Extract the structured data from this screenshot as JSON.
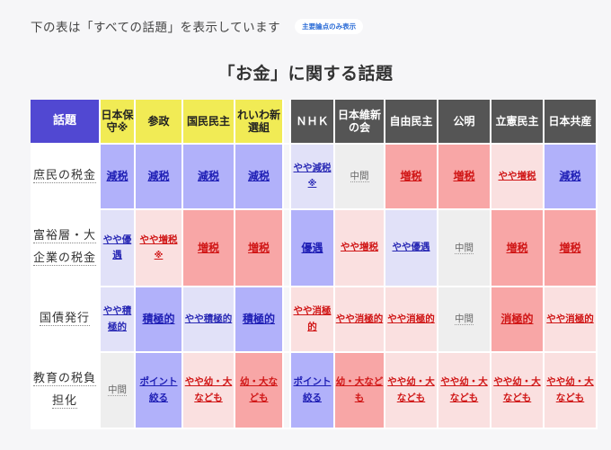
{
  "header": {
    "description": "下の表は「すべての話題」を表示しています",
    "toggle_label": "主要論点のみ表示"
  },
  "page_title": "「お金」に関する話題",
  "table": {
    "topic_header": "話題",
    "parties": [
      {
        "name": "日本保守※",
        "group": "yellow"
      },
      {
        "name": "参政",
        "group": "yellow"
      },
      {
        "name": "国民民主",
        "group": "yellow"
      },
      {
        "name": "れいわ新選組",
        "group": "yellow"
      },
      {
        "name": "ＮＨＫ",
        "group": "grey"
      },
      {
        "name": "日本維新の会",
        "group": "grey"
      },
      {
        "name": "自由民主",
        "group": "grey"
      },
      {
        "name": "公明",
        "group": "grey"
      },
      {
        "name": "立憲民主",
        "group": "grey"
      },
      {
        "name": "日本共産",
        "group": "grey"
      }
    ],
    "rows": [
      {
        "topic": "庶民の税金",
        "cells": [
          {
            "text": "減税",
            "tone": "blue-strong"
          },
          {
            "text": "減税",
            "tone": "blue-strong"
          },
          {
            "text": "減税",
            "tone": "blue-strong"
          },
          {
            "text": "減税",
            "tone": "blue-strong"
          },
          {
            "text": "やや減税",
            "note": "※",
            "tone": "blue-light"
          },
          {
            "text": "中間",
            "tone": "neutral"
          },
          {
            "text": "増税",
            "tone": "red-strong"
          },
          {
            "text": "増税",
            "tone": "red-strong"
          },
          {
            "text": "やや増税",
            "tone": "red-light"
          },
          {
            "text": "減税",
            "tone": "blue-strong"
          }
        ]
      },
      {
        "topic": "富裕層・大企業の税金",
        "cells": [
          {
            "text": "やや優遇",
            "tone": "blue-light"
          },
          {
            "text": "やや増税",
            "note": "※",
            "tone": "red-light"
          },
          {
            "text": "増税",
            "tone": "red-strong"
          },
          {
            "text": "増税",
            "tone": "red-strong"
          },
          {
            "text": "優遇",
            "tone": "blue-strong"
          },
          {
            "text": "やや増税",
            "tone": "red-light"
          },
          {
            "text": "やや優遇",
            "tone": "blue-light"
          },
          {
            "text": "中間",
            "tone": "neutral"
          },
          {
            "text": "増税",
            "tone": "red-strong"
          },
          {
            "text": "増税",
            "tone": "red-strong"
          }
        ]
      },
      {
        "topic": "国債発行",
        "cells": [
          {
            "text": "やや積極的",
            "tone": "blue-light"
          },
          {
            "text": "積極的",
            "tone": "blue-strong"
          },
          {
            "text": "やや積極的",
            "tone": "blue-light"
          },
          {
            "text": "積極的",
            "tone": "blue-strong"
          },
          {
            "text": "やや消極的",
            "tone": "red-light"
          },
          {
            "text": "やや消極的",
            "tone": "red-light"
          },
          {
            "text": "やや消極的",
            "tone": "red-light"
          },
          {
            "text": "中間",
            "tone": "neutral"
          },
          {
            "text": "消極的",
            "tone": "red-strong"
          },
          {
            "text": "やや消極的",
            "tone": "red-light"
          }
        ]
      },
      {
        "topic": "教育の税負担化",
        "cells": [
          {
            "text": "中間",
            "tone": "neutral"
          },
          {
            "text": "ポイント絞る",
            "tone": "blue-strong"
          },
          {
            "text": "やや幼・大なども",
            "tone": "red-light"
          },
          {
            "text": "幼・大なども",
            "tone": "red-strong"
          },
          {
            "text": "ポイント絞る",
            "tone": "blue-strong"
          },
          {
            "text": "幼・大なども",
            "tone": "red-strong"
          },
          {
            "text": "やや幼・大なども",
            "tone": "red-light"
          },
          {
            "text": "やや幼・大なども",
            "tone": "red-light"
          },
          {
            "text": "やや幼・大なども",
            "tone": "red-light"
          },
          {
            "text": "やや幼・大なども",
            "tone": "red-light"
          }
        ]
      }
    ]
  }
}
